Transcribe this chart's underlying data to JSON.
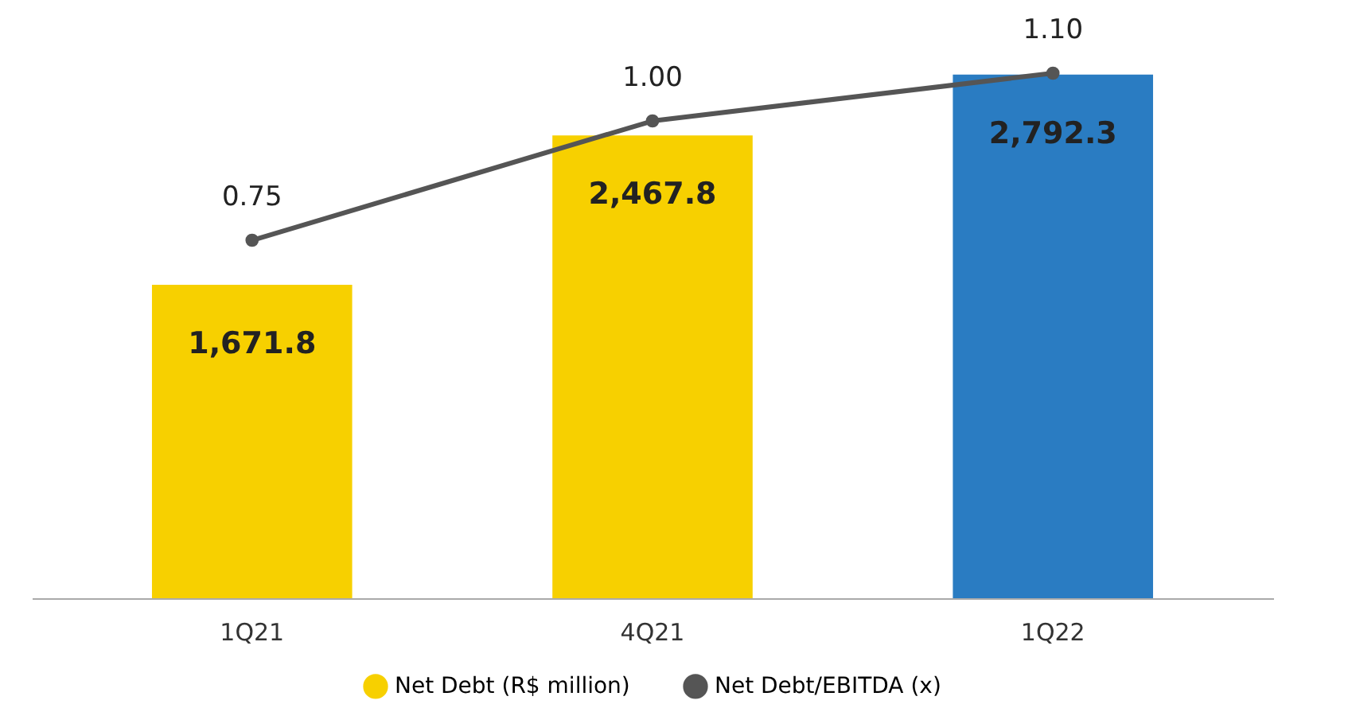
{
  "chart_data": {
    "type": "bar",
    "categories": [
      "1Q21",
      "4Q21",
      "1Q22"
    ],
    "series": [
      {
        "name": "Net Debt (R$ million)",
        "color": "#f7d000",
        "colors": [
          "#f7d000",
          "#f7d000",
          "#2a7cc2"
        ],
        "values": [
          1671.8,
          2467.8,
          2792.3
        ],
        "value_labels": [
          "1,671.8",
          "2,467.8",
          "2,792.3"
        ]
      },
      {
        "name": "Net Debt/EBITDA (x)",
        "type": "line",
        "axis": "y2",
        "color": "#555555",
        "values": [
          0.75,
          1.0,
          1.1
        ],
        "value_labels": [
          "0.75",
          "1.00",
          "1.10"
        ]
      }
    ],
    "legend": "bottom",
    "tick_labels": "x",
    "marker": "circle",
    "line_style": "solid"
  }
}
